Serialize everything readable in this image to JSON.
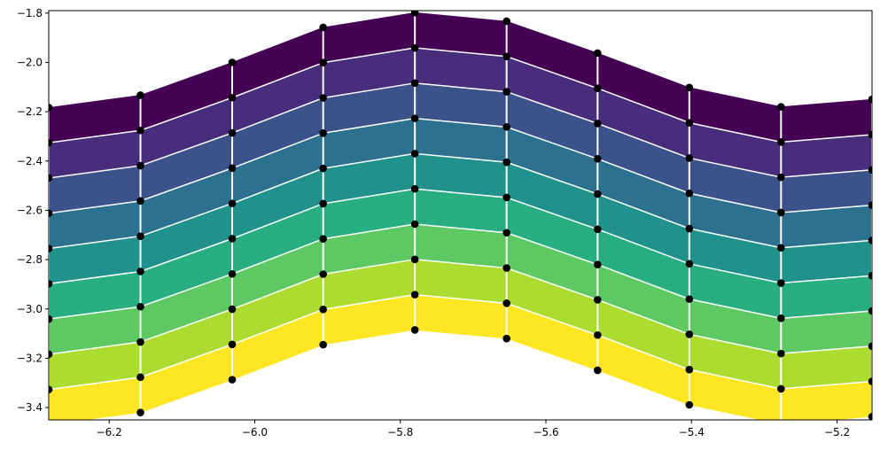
{
  "chart_data": {
    "type": "area",
    "x": [
      -6.283,
      -6.157,
      -6.031,
      -5.906,
      -5.78,
      -5.654,
      -5.529,
      -5.403,
      -5.277,
      -5.152
    ],
    "xlim": [
      -6.283,
      -5.152
    ],
    "ylim": [
      -3.45,
      -1.79
    ],
    "x_tick_labels": [
      -6.2,
      -6.0,
      -5.8,
      -5.6,
      -5.4,
      -5.2
    ],
    "y_tick_labels": [
      -3.4,
      -3.2,
      -3.0,
      -2.8,
      -2.6,
      -2.4,
      -2.2,
      -2.0,
      -1.8
    ],
    "grid": false,
    "colormap": "viridis",
    "row_offsets": [
      0.0,
      0.143,
      0.286,
      0.429,
      0.572,
      0.715,
      0.858,
      1.001,
      1.144,
      1.287
    ],
    "base_row": [
      -2.183,
      -2.133,
      -2.0,
      -1.858,
      -1.798,
      -1.833,
      -1.962,
      -2.102,
      -2.18,
      -2.15
    ],
    "marker_rows": [
      [
        -2.183,
        -2.133,
        -2.0,
        -1.858,
        -1.798,
        -1.833,
        -1.962,
        -2.102,
        -2.18,
        -2.15
      ],
      [
        -2.326,
        -2.276,
        -2.143,
        -2.001,
        -1.941,
        -1.976,
        -2.105,
        -2.245,
        -2.323,
        -2.293
      ],
      [
        -2.469,
        -2.419,
        -2.286,
        -2.144,
        -2.084,
        -2.119,
        -2.248,
        -2.388,
        -2.466,
        -2.436
      ],
      [
        -2.612,
        -2.562,
        -2.429,
        -2.287,
        -2.227,
        -2.262,
        -2.391,
        -2.531,
        -2.609,
        -2.579
      ],
      [
        -2.755,
        -2.705,
        -2.572,
        -2.43,
        -2.37,
        -2.405,
        -2.534,
        -2.674,
        -2.752,
        -2.722
      ],
      [
        -2.898,
        -2.848,
        -2.715,
        -2.573,
        -2.513,
        -2.548,
        -2.677,
        -2.817,
        -2.895,
        -2.865
      ],
      [
        -3.041,
        -2.991,
        -2.858,
        -2.716,
        -2.656,
        -2.691,
        -2.82,
        -2.96,
        -3.038,
        -3.008
      ],
      [
        -3.184,
        -3.134,
        -3.001,
        -2.859,
        -2.799,
        -2.834,
        -2.963,
        -3.103,
        -3.181,
        -3.151
      ],
      [
        -3.327,
        -3.277,
        -3.144,
        -3.002,
        -2.942,
        -2.977,
        -3.106,
        -3.246,
        -3.324,
        -3.294
      ],
      [
        -3.47,
        -3.42,
        -3.287,
        -3.145,
        -3.085,
        -3.12,
        -3.249,
        -3.389,
        -3.467,
        -3.437
      ]
    ],
    "band_colors": [
      "#440154",
      "#472d7b",
      "#3b528b",
      "#2c728e",
      "#21918c",
      "#28ae80",
      "#5ec962",
      "#addc30",
      "#fde725"
    ],
    "line_color": "#ffffff",
    "marker_color": "#000000"
  }
}
